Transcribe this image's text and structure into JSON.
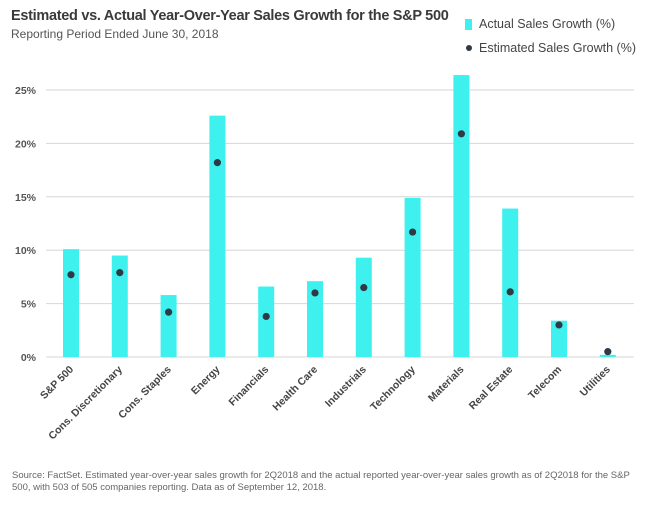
{
  "header": {
    "title": "Estimated vs. Actual Year-Over-Year Sales Growth for the S&P 500",
    "subtitle": "Reporting Period Ended June 30, 2018"
  },
  "legend": {
    "actual_label": "Actual Sales Growth (%)",
    "estimated_label": "Estimated Sales Growth (%)"
  },
  "colors": {
    "actual": "#3ef1ef",
    "estimated": "#2e3a46",
    "grid": "#d6d6d6"
  },
  "footer": {
    "source": "Source: FactSet. Estimated year-over-year sales growth for 2Q2018 and the actual reported year-over-year sales growth as of 2Q2018 for the S&P 500, with 503 of 505 companies reporting. Data as of September 12, 2018."
  },
  "chart_data": {
    "type": "bar",
    "categories": [
      "S&P 500",
      "Cons. Discretionary",
      "Cons. Staples",
      "Energy",
      "Financials",
      "Health Care",
      "Industrials",
      "Technology",
      "Materials",
      "Real Estate",
      "Telecom",
      "Utilities"
    ],
    "series": [
      {
        "name": "Actual Sales Growth (%)",
        "kind": "bar",
        "values": [
          10.1,
          9.5,
          5.8,
          22.6,
          6.6,
          7.1,
          9.3,
          14.9,
          26.4,
          13.9,
          3.4,
          0.2
        ]
      },
      {
        "name": "Estimated Sales Growth (%)",
        "kind": "point",
        "values": [
          7.7,
          7.9,
          4.2,
          18.2,
          3.8,
          6.0,
          6.5,
          11.7,
          20.9,
          6.1,
          3.0,
          0.5
        ]
      }
    ],
    "ylim": [
      0,
      25
    ],
    "yticks": [
      0,
      5,
      10,
      15,
      20,
      25
    ],
    "ytick_labels": [
      "0%",
      "5%",
      "10%",
      "15%",
      "20%",
      "25%"
    ],
    "grid": true,
    "legend_position": "top-right"
  }
}
